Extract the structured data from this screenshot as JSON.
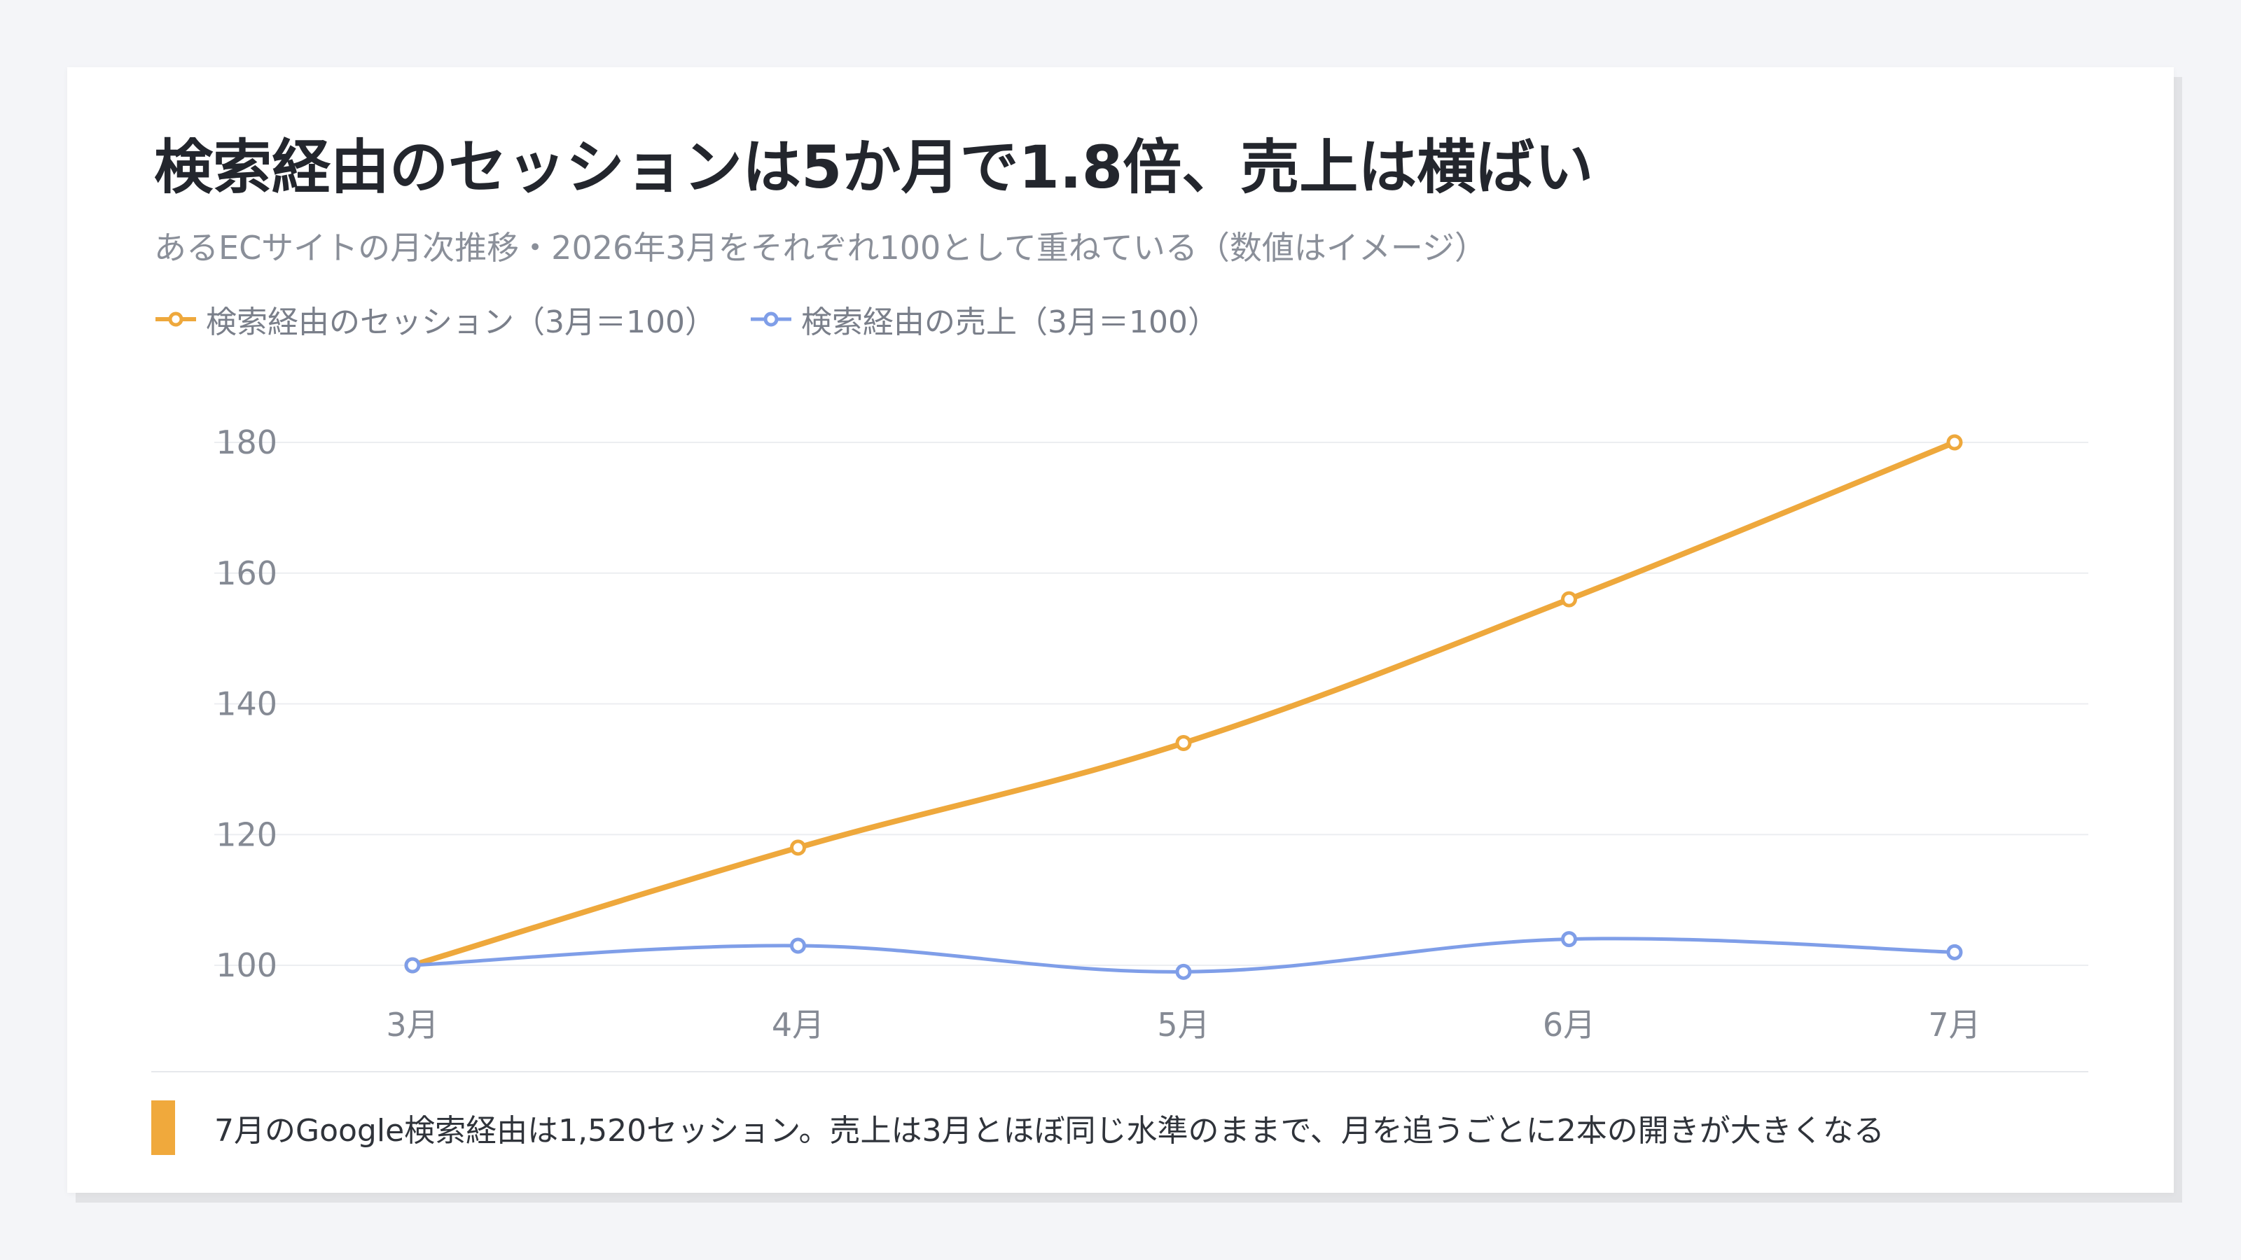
{
  "header": {
    "title": "検索経由のセッションは5か月で1.8倍、売上は横ばい",
    "subtitle": "あるECサイトの月次推移・2026年3月をそれぞれ100として重ねている（数値はイメージ）"
  },
  "chart_data": {
    "type": "line",
    "categories": [
      "3月",
      "4月",
      "5月",
      "6月",
      "7月"
    ],
    "series": [
      {
        "name": "検索経由のセッション（3月＝100）",
        "values": [
          100,
          118,
          134,
          156,
          180
        ],
        "color": "#eea83c"
      },
      {
        "name": "検索経由の売上（3月＝100）",
        "values": [
          100,
          103,
          99,
          104,
          102
        ],
        "color": "#7f9ee8"
      }
    ],
    "yticks": [
      "100",
      "120",
      "140",
      "160",
      "180"
    ],
    "ylim": [
      100,
      180
    ],
    "grid": true,
    "legend": "top-left",
    "xlabel": "",
    "ylabel": ""
  },
  "footer": {
    "note": "7月のGoogle検索経由は1,520セッション。売上は3月とほぼ同じ水準のままで、月を追うごとに2本の開きが大きくなる",
    "accent_color": "#f0a93c"
  }
}
